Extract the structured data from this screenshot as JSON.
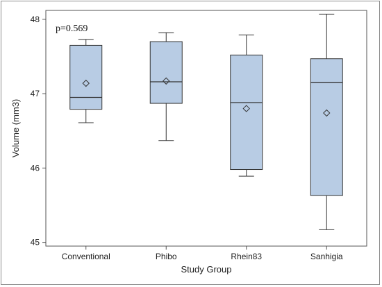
{
  "chart_data": {
    "type": "box",
    "xlabel": "Study Group",
    "ylabel": "Volume (mm3)",
    "ylim": [
      44.95,
      48.12
    ],
    "yticks": [
      45,
      46,
      47,
      48
    ],
    "categories": [
      "Conventional",
      "Phibo",
      "Rhein83",
      "Sanhigia"
    ],
    "boxes": [
      {
        "min": 46.61,
        "q1": 46.79,
        "median": 46.95,
        "q3": 47.65,
        "max": 47.73,
        "mean": 47.14
      },
      {
        "min": 46.37,
        "q1": 46.87,
        "median": 47.16,
        "q3": 47.7,
        "max": 47.82,
        "mean": 47.17
      },
      {
        "min": 45.89,
        "q1": 45.98,
        "median": 46.88,
        "q3": 47.52,
        "max": 47.79,
        "mean": 46.8
      },
      {
        "min": 45.17,
        "q1": 45.63,
        "median": 47.15,
        "q3": 47.47,
        "max": 48.07,
        "mean": 46.74
      }
    ],
    "annotation": "p=0.569",
    "colors": {
      "box_fill": "#b8cce4",
      "box_stroke": "#333333"
    }
  }
}
